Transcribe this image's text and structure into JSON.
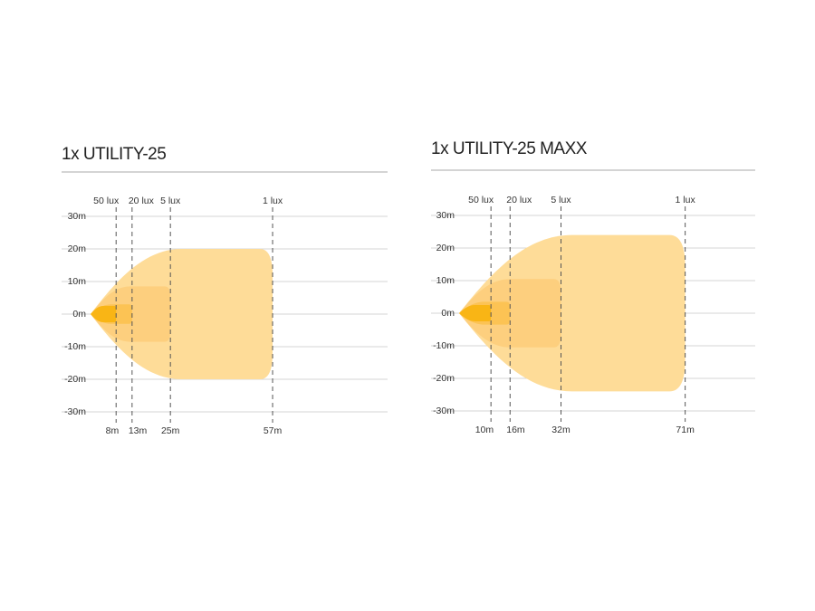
{
  "chart_data": [
    {
      "type": "beam",
      "title": "1x UTILITY-25",
      "xlim": [
        0,
        93
      ],
      "ylim": [
        -30,
        30
      ],
      "yticks": [
        {
          "value": 30,
          "label": "30m"
        },
        {
          "value": 20,
          "label": "20m"
        },
        {
          "value": 10,
          "label": "10m"
        },
        {
          "value": 0,
          "label": "0m"
        },
        {
          "value": -10,
          "label": "-10m"
        },
        {
          "value": -20,
          "label": "-20m"
        },
        {
          "value": -30,
          "label": "-30m"
        }
      ],
      "grid": true,
      "series": [
        {
          "name": "50 lux",
          "color": "#f9b515",
          "distance": 8,
          "distance_label": "8m",
          "halfwidth": 2.5
        },
        {
          "name": "20 lux",
          "color": "#fcc354",
          "distance": 13,
          "distance_label": "13m",
          "halfwidth": 3
        },
        {
          "name": "5 lux",
          "color": "#fdcf7e",
          "distance": 25,
          "distance_label": "25m",
          "halfwidth": 8.5
        },
        {
          "name": "1 lux",
          "color": "#fedc98",
          "distance": 57,
          "distance_label": "57m",
          "halfwidth": 20
        }
      ]
    },
    {
      "type": "beam",
      "title": "1x UTILITY-25 MAXX",
      "xlim": [
        0,
        93
      ],
      "ylim": [
        -30,
        30
      ],
      "yticks": [
        {
          "value": 30,
          "label": "30m"
        },
        {
          "value": 20,
          "label": "20m"
        },
        {
          "value": 10,
          "label": "10m"
        },
        {
          "value": 0,
          "label": "0m"
        },
        {
          "value": -10,
          "label": "-10m"
        },
        {
          "value": -20,
          "label": "-20m"
        },
        {
          "value": -30,
          "label": "-30m"
        }
      ],
      "grid": true,
      "series": [
        {
          "name": "50 lux",
          "color": "#f9b515",
          "distance": 10,
          "distance_label": "10m",
          "halfwidth": 2.5
        },
        {
          "name": "20 lux",
          "color": "#fcc354",
          "distance": 16,
          "distance_label": "16m",
          "halfwidth": 3.5
        },
        {
          "name": "5 lux",
          "color": "#fdcf7e",
          "distance": 32,
          "distance_label": "32m",
          "halfwidth": 10.5
        },
        {
          "name": "1 lux",
          "color": "#fedc98",
          "distance": 71,
          "distance_label": "71m",
          "halfwidth": 24
        }
      ]
    }
  ]
}
